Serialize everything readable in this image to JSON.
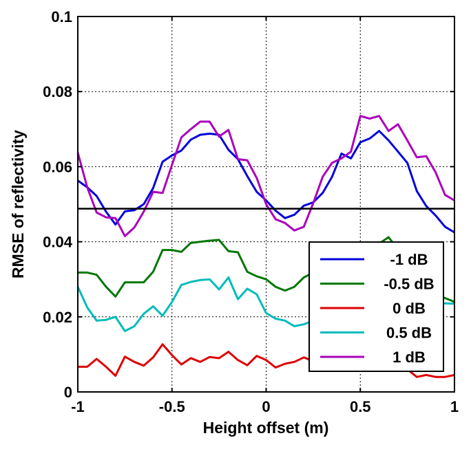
{
  "chart_data": {
    "type": "line",
    "title": "",
    "xlabel": "Height offset (m)",
    "ylabel": "RMSE of reflectivity",
    "xlim": [
      -1,
      1
    ],
    "ylim": [
      0,
      0.1
    ],
    "x_ticks": [
      -1,
      -0.5,
      0,
      0.5,
      1
    ],
    "x_tick_labels": [
      "-1",
      "-0.5",
      "0",
      "0.5",
      "1"
    ],
    "y_ticks": [
      0,
      0.02,
      0.04,
      0.06,
      0.08,
      0.1
    ],
    "y_tick_labels": [
      "0",
      "0.02",
      "0.04",
      "0.06",
      "0.08",
      "0.1"
    ],
    "grid": true,
    "legend_position": "lower-right",
    "x": [
      -1.0,
      -0.95,
      -0.9,
      -0.85,
      -0.8,
      -0.75,
      -0.7,
      -0.65,
      -0.6,
      -0.55,
      -0.5,
      -0.45,
      -0.4,
      -0.35,
      -0.3,
      -0.25,
      -0.2,
      -0.15,
      -0.1,
      -0.05,
      0.0,
      0.05,
      0.1,
      0.15,
      0.2,
      0.25,
      0.3,
      0.35,
      0.4,
      0.45,
      0.5,
      0.55,
      0.6,
      0.65,
      0.7,
      0.75,
      0.8,
      0.85,
      0.9,
      0.95,
      1.0
    ],
    "series": [
      {
        "name": "-1 dB",
        "color": "#0000dd",
        "values": [
          0.0563,
          0.0545,
          0.0522,
          0.048,
          0.0446,
          0.0481,
          0.0484,
          0.05,
          0.0543,
          0.0613,
          0.063,
          0.0643,
          0.0672,
          0.0685,
          0.0688,
          0.0685,
          0.0645,
          0.062,
          0.0575,
          0.0533,
          0.051,
          0.0483,
          0.0463,
          0.0472,
          0.0496,
          0.0505,
          0.053,
          0.0573,
          0.0635,
          0.0622,
          0.0665,
          0.0675,
          0.0695,
          0.067,
          0.064,
          0.061,
          0.0535,
          0.0495,
          0.047,
          0.044,
          0.0425
        ]
      },
      {
        "name": "-0.5 dB",
        "color": "#007700",
        "values": [
          0.0318,
          0.0318,
          0.0312,
          0.028,
          0.0254,
          0.0292,
          0.0292,
          0.0292,
          0.032,
          0.0378,
          0.0378,
          0.0373,
          0.0397,
          0.04,
          0.0403,
          0.0405,
          0.0375,
          0.0372,
          0.032,
          0.0308,
          0.03,
          0.028,
          0.027,
          0.028,
          0.0305,
          0.0318,
          0.0328,
          0.0332,
          0.035,
          0.0368,
          0.038,
          0.039,
          0.0395,
          0.0412,
          0.038,
          0.0345,
          0.032,
          0.028,
          0.026,
          0.025,
          0.024
        ]
      },
      {
        "name": "0 dB",
        "color": "#dd0000",
        "values": [
          0.0067,
          0.0067,
          0.0088,
          0.0067,
          0.0043,
          0.0094,
          0.008,
          0.007,
          0.0092,
          0.0127,
          0.0098,
          0.0073,
          0.009,
          0.008,
          0.0093,
          0.009,
          0.0107,
          0.0085,
          0.0071,
          0.0096,
          0.0085,
          0.0065,
          0.0075,
          0.008,
          0.0092,
          0.0082,
          0.009,
          0.0058,
          0.0075,
          0.0085,
          0.007,
          0.008,
          0.0075,
          0.007,
          0.0065,
          0.006,
          0.004,
          0.0045,
          0.004,
          0.004,
          0.0045
        ]
      },
      {
        "name": "0.5 dB",
        "color": "#00bbbb",
        "values": [
          0.028,
          0.0225,
          0.019,
          0.0192,
          0.02,
          0.0162,
          0.0175,
          0.0208,
          0.0228,
          0.0203,
          0.024,
          0.0285,
          0.0293,
          0.0298,
          0.03,
          0.0273,
          0.0305,
          0.0247,
          0.0275,
          0.026,
          0.021,
          0.0195,
          0.019,
          0.0175,
          0.018,
          0.019,
          0.02,
          0.0215,
          0.022,
          0.023,
          0.024,
          0.0245,
          0.025,
          0.0245,
          0.024,
          0.0238,
          0.0236,
          0.0235,
          0.0235,
          0.0236,
          0.0235
        ]
      },
      {
        "name": "1 dB",
        "color": "#aa00bb",
        "values": [
          0.0637,
          0.0545,
          0.0478,
          0.0465,
          0.0463,
          0.0415,
          0.0438,
          0.048,
          0.0533,
          0.053,
          0.0605,
          0.0678,
          0.07,
          0.072,
          0.072,
          0.068,
          0.0698,
          0.062,
          0.0617,
          0.057,
          0.05,
          0.046,
          0.045,
          0.043,
          0.044,
          0.0503,
          0.0573,
          0.061,
          0.0622,
          0.064,
          0.0735,
          0.0728,
          0.0735,
          0.0695,
          0.0713,
          0.067,
          0.0625,
          0.0628,
          0.0585,
          0.0525,
          0.051
        ]
      }
    ],
    "reference_line": {
      "y": 0.0488,
      "color": "#000000"
    }
  }
}
